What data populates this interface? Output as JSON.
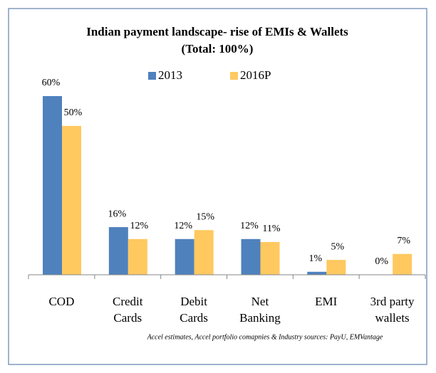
{
  "chart_data": {
    "type": "bar",
    "title": "Indian payment landscape- rise of EMIs & Wallets",
    "subtitle": "(Total: 100%)",
    "categories": [
      [
        "COD"
      ],
      [
        "Credit",
        "Cards"
      ],
      [
        "Debit",
        "Cards"
      ],
      [
        "Net",
        "Banking"
      ],
      [
        "EMI"
      ],
      [
        "3rd party",
        "wallets"
      ]
    ],
    "series": [
      {
        "name": "2013",
        "color": "#4f81bd",
        "values": [
          60,
          16,
          12,
          12,
          1,
          0
        ],
        "value_labels": [
          "60%",
          "16%",
          "12%",
          "12%",
          "1%",
          "0%"
        ]
      },
      {
        "name": "2016P",
        "color": "#ffc960",
        "values": [
          50,
          12,
          15,
          11,
          5,
          7
        ],
        "value_labels": [
          "50%",
          "12%",
          "15%",
          "11%",
          "5%",
          "7%"
        ]
      }
    ],
    "source": "Accel estimates, Accel portfolio comapnies & Industry sources: PayU, EMVantage"
  }
}
